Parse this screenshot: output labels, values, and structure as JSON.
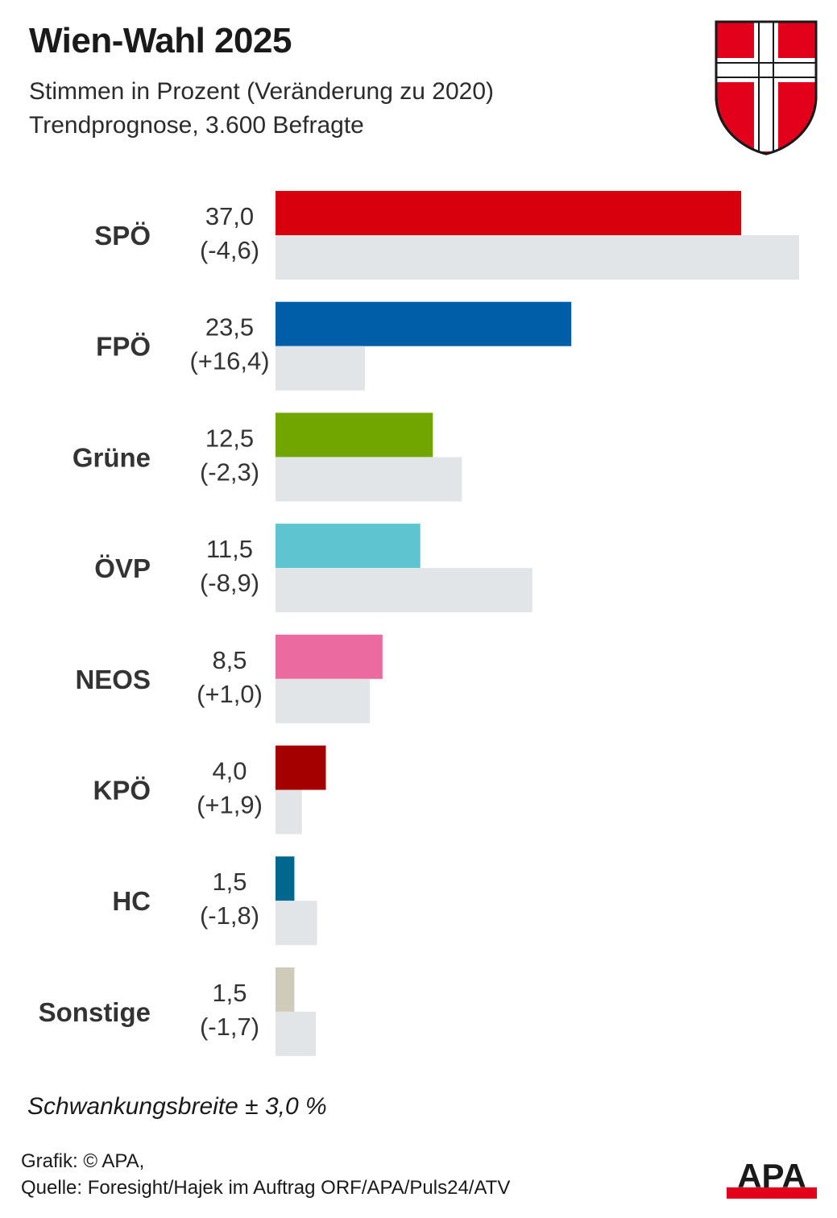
{
  "header": {
    "title": "Wien-Wahl 2025",
    "subtitle_line1": "Stimmen in Prozent (Veränderung zu 2020)",
    "subtitle_line2": "Trendprognose, 3.600 Befragte"
  },
  "colors": {
    "SPÖ": "#d9000d",
    "FPÖ": "#005da8",
    "Grüne": "#71a600",
    "ÖVP": "#5ec4d0",
    "NEOS": "#eb6aa0",
    "KPÖ": "#a50000",
    "HC": "#00688e",
    "Sonstige": "#cfcbbb",
    "previous": "#e1e5e7",
    "coat_red": "#e2001a",
    "logo_red": "#e2001a"
  },
  "chart_data": {
    "type": "bar",
    "orientation": "horizontal",
    "categories": [
      "SPÖ",
      "FPÖ",
      "Grüne",
      "ÖVP",
      "NEOS",
      "KPÖ",
      "HC",
      "Sonstige"
    ],
    "series": [
      {
        "values": [
          37.0,
          23.5,
          12.5,
          11.5,
          8.5,
          4.0,
          1.5,
          1.5
        ]
      },
      {
        "values": [
          41.6,
          7.1,
          14.8,
          20.4,
          7.5,
          2.1,
          3.3,
          3.2
        ]
      }
    ],
    "value_labels": [
      "37,0",
      "23,5",
      "12,5",
      "11,5",
      "8,5",
      "4,0",
      "1,5",
      "1,5"
    ],
    "change_labels": [
      "(-4,6)",
      "(+16,4)",
      "(-2,3)",
      "(-8,9)",
      "(+1,0)",
      "(+1,9)",
      "(-1,8)",
      "(-1,7)"
    ],
    "title": "Wien-Wahl 2025",
    "xlim": [
      0,
      41.6
    ],
    "grid": false,
    "legend": "none"
  },
  "footer": {
    "note": "Schwankungsbreite ± 3,0 %",
    "credit_line1": "Grafik: © APA,",
    "credit_line2": "Quelle: Foresight/Hajek im Auftrag ORF/APA/Puls24/ATV",
    "logo_text": "APA"
  }
}
